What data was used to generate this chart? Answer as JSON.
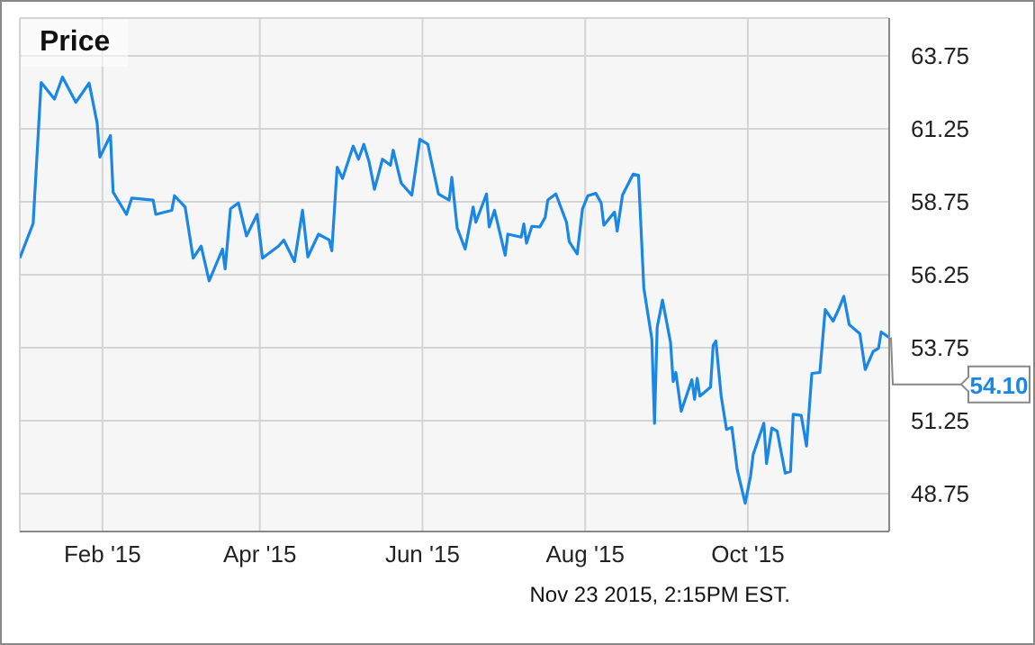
{
  "chart_data": {
    "type": "line",
    "title": "Price",
    "x": [
      "2015-01-01",
      "2015-01-06",
      "2015-01-09",
      "2015-01-14",
      "2015-01-17",
      "2015-01-22",
      "2015-01-27",
      "2015-01-30",
      "2015-01-31",
      "2015-02-04",
      "2015-02-05",
      "2015-02-10",
      "2015-02-12",
      "2015-02-20",
      "2015-02-21",
      "2015-02-27",
      "2015-02-28",
      "2015-03-04",
      "2015-03-07",
      "2015-03-10",
      "2015-03-13",
      "2015-03-18",
      "2015-03-19",
      "2015-03-21",
      "2015-03-24",
      "2015-03-27",
      "2015-03-31",
      "2015-04-02",
      "2015-04-08",
      "2015-04-10",
      "2015-04-14",
      "2015-04-17",
      "2015-04-19",
      "2015-04-23",
      "2015-04-27",
      "2015-04-28",
      "2015-04-30",
      "2015-05-02",
      "2015-05-06",
      "2015-05-08",
      "2015-05-10",
      "2015-05-12",
      "2015-05-14",
      "2015-05-17",
      "2015-05-20",
      "2015-05-21",
      "2015-05-24",
      "2015-05-28",
      "2015-05-31",
      "2015-06-03",
      "2015-06-04",
      "2015-06-07",
      "2015-06-11",
      "2015-06-12",
      "2015-06-14",
      "2015-06-17",
      "2015-06-20",
      "2015-06-21",
      "2015-06-25",
      "2015-06-26",
      "2015-06-28",
      "2015-07-02",
      "2015-07-03",
      "2015-07-08",
      "2015-07-09",
      "2015-07-10",
      "2015-07-12",
      "2015-07-15",
      "2015-07-17",
      "2015-07-18",
      "2015-07-21",
      "2015-07-25",
      "2015-07-26",
      "2015-07-29",
      "2015-07-31",
      "2015-08-02",
      "2015-08-05",
      "2015-08-07",
      "2015-08-08",
      "2015-08-12",
      "2015-08-13",
      "2015-08-15",
      "2015-08-19",
      "2015-08-21",
      "2015-08-23",
      "2015-08-26",
      "2015-08-27",
      "2015-08-28",
      "2015-08-30",
      "2015-09-02",
      "2015-09-03",
      "2015-09-04",
      "2015-09-06",
      "2015-09-10",
      "2015-09-11",
      "2015-09-12",
      "2015-09-13",
      "2015-09-17",
      "2015-09-18",
      "2015-09-19",
      "2015-09-21",
      "2015-09-23",
      "2015-09-25",
      "2015-09-27",
      "2015-09-30",
      "2015-10-02",
      "2015-10-03",
      "2015-10-07",
      "2015-10-08",
      "2015-10-10",
      "2015-10-12",
      "2015-10-15",
      "2015-10-17",
      "2015-10-18",
      "2015-10-21",
      "2015-10-23",
      "2015-10-25",
      "2015-10-28",
      "2015-10-30",
      "2015-11-02",
      "2015-11-04",
      "2015-11-06",
      "2015-11-08",
      "2015-11-12",
      "2015-11-14",
      "2015-11-17",
      "2015-11-19",
      "2015-11-20",
      "2015-11-23"
    ],
    "series": [
      {
        "color": "#1a87e6",
        "values": [
          56.82,
          58.01,
          62.84,
          62.27,
          63.03,
          62.16,
          62.82,
          61.45,
          60.28,
          61.02,
          59.08,
          58.32,
          58.88,
          58.81,
          58.32,
          58.46,
          58.96,
          58.57,
          56.82,
          57.23,
          56.04,
          57.13,
          56.45,
          58.51,
          58.71,
          57.58,
          58.32,
          56.82,
          57.23,
          57.44,
          56.7,
          58.46,
          56.86,
          57.64,
          57.44,
          57.07,
          59.94,
          59.55,
          60.66,
          60.21,
          60.72,
          60.11,
          59.18,
          60.21,
          60.0,
          60.52,
          59.39,
          58.98,
          60.89,
          60.72,
          60.28,
          59.02,
          58.81,
          59.59,
          57.85,
          57.13,
          58.57,
          58.05,
          59.02,
          57.89,
          58.46,
          56.92,
          57.64,
          57.54,
          57.99,
          57.33,
          57.91,
          57.89,
          58.22,
          58.81,
          59.02,
          58.05,
          57.39,
          56.96,
          58.51,
          58.96,
          59.04,
          58.71,
          57.95,
          58.4,
          57.75,
          58.98,
          59.7,
          59.66,
          55.79,
          54.04,
          51.16,
          54.45,
          55.38,
          53.93,
          52.59,
          52.9,
          51.57,
          52.65,
          51.98,
          52.7,
          52.09,
          52.4,
          53.83,
          53.98,
          52.09,
          50.95,
          51.02,
          49.57,
          48.42,
          49.34,
          50.09,
          51.16,
          49.78,
          51.0,
          50.89,
          49.45,
          49.51,
          51.47,
          51.43,
          50.38,
          52.87,
          52.9,
          55.06,
          54.66,
          55.06,
          55.51,
          54.54,
          54.23,
          53.0,
          53.62,
          53.73,
          54.29,
          54.1
        ]
      }
    ],
    "xlim": [
      "2015-01-01",
      "2015-11-23"
    ],
    "xticks": [
      {
        "value": "2015-02-01",
        "label": "Feb '15"
      },
      {
        "value": "2015-04-01",
        "label": "Apr '15"
      },
      {
        "value": "2015-06-01",
        "label": "Jun '15"
      },
      {
        "value": "2015-08-01",
        "label": "Aug '15"
      },
      {
        "value": "2015-10-01",
        "label": "Oct '15"
      }
    ],
    "ylim": [
      47.45,
      65.05
    ],
    "yticks": [
      48.75,
      51.25,
      53.75,
      56.25,
      58.75,
      61.25,
      63.75
    ],
    "grid": true,
    "legend": false,
    "marker": "none",
    "line_style": "solid",
    "annotations": [
      {
        "text": "54.10",
        "x": "2015-11-23",
        "y": 54.1
      },
      "Nov 23 2015, 2:15PM EST."
    ]
  }
}
